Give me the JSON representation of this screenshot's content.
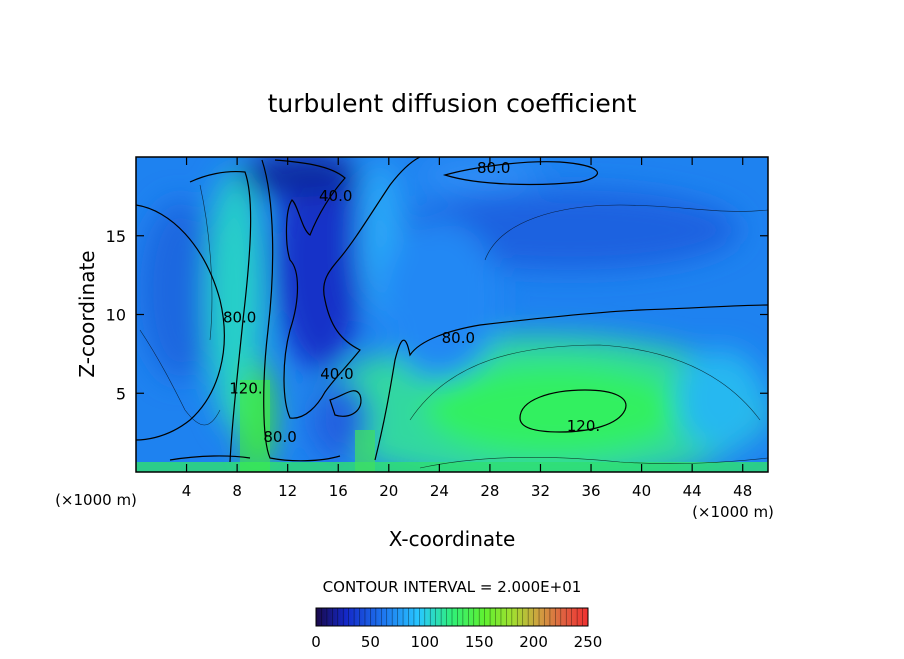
{
  "chart_data": {
    "type": "heatmap",
    "title": "turbulent diffusion coefficient",
    "xlabel": "X-coordinate",
    "ylabel": "Z-coordinate",
    "x_unit": "(×1000 m)",
    "y_unit": "(×1000 m)",
    "xlim": [
      0,
      50
    ],
    "ylim": [
      0,
      20
    ],
    "x_ticks": [
      4,
      8,
      12,
      16,
      20,
      24,
      28,
      32,
      36,
      40,
      44,
      48
    ],
    "y_ticks": [
      5,
      10,
      15
    ],
    "contour_interval_label": "CONTOUR INTERVAL = 2.000E+01",
    "contour_labels": [
      {
        "text": "80.0",
        "x": 28.3,
        "z": 19.0
      },
      {
        "text": "40.0",
        "x": 15.8,
        "z": 17.2
      },
      {
        "text": "80.0",
        "x": 8.2,
        "z": 9.5
      },
      {
        "text": "80.0",
        "x": 25.5,
        "z": 8.2
      },
      {
        "text": "40.0",
        "x": 15.9,
        "z": 5.9
      },
      {
        "text": "120.",
        "x": 8.7,
        "z": 5.0
      },
      {
        "text": "120.",
        "x": 35.4,
        "z": 2.6
      },
      {
        "text": "80.0",
        "x": 11.4,
        "z": 1.9
      }
    ],
    "colorbar": {
      "min": 0,
      "max": 250,
      "ticks": [
        0,
        50,
        100,
        150,
        200,
        250
      ],
      "colors": [
        "#1a0a4a",
        "#1428c8",
        "#1e78f0",
        "#28c8ff",
        "#30f078",
        "#60f030",
        "#a0e030",
        "#d0a040",
        "#e06040",
        "#f03030"
      ]
    }
  }
}
